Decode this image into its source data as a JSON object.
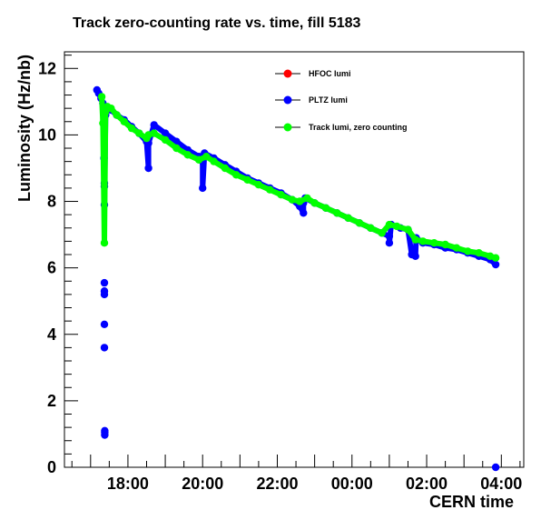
{
  "chart_data": {
    "type": "scatter",
    "title": "Track zero-counting rate vs. time, fill 5183",
    "xlabel": "CERN time",
    "ylabel": "Luminosity (Hz/nb)",
    "x_unit": "hours (CERN time, 24 = 00:00 next day)",
    "xlim": [
      16.3,
      28.6
    ],
    "ylim": [
      0,
      12.5
    ],
    "x_ticks": [
      {
        "value": 18,
        "label": "18:00"
      },
      {
        "value": 20,
        "label": "20:00"
      },
      {
        "value": 22,
        "label": "22:00"
      },
      {
        "value": 24,
        "label": "00:00"
      },
      {
        "value": 26,
        "label": "02:00"
      },
      {
        "value": 28,
        "label": "04:00"
      }
    ],
    "y_ticks": [
      {
        "value": 0,
        "label": "0"
      },
      {
        "value": 2,
        "label": "2"
      },
      {
        "value": 4,
        "label": "4"
      },
      {
        "value": 6,
        "label": "6"
      },
      {
        "value": 8,
        "label": "8"
      },
      {
        "value": 10,
        "label": "10"
      },
      {
        "value": 12,
        "label": "12"
      }
    ],
    "grid": false,
    "legend_position": "top-right",
    "series": [
      {
        "name": "HFOC lumi",
        "color": "#ff0000",
        "x": [],
        "y": []
      },
      {
        "name": "PLTZ lumi",
        "color": "#0000ff",
        "x": [
          17.17,
          17.22,
          17.28,
          17.33,
          17.36,
          17.36,
          17.36,
          17.37,
          17.37,
          17.37,
          17.37,
          17.37,
          17.37,
          17.37,
          17.37,
          17.38,
          17.38,
          17.38,
          17.4,
          17.45,
          17.55,
          17.7,
          17.9,
          18.1,
          18.3,
          18.5,
          18.55,
          18.55,
          18.7,
          19.0,
          19.3,
          19.6,
          19.9,
          20.0,
          20.0,
          20.05,
          20.3,
          20.6,
          20.9,
          21.2,
          21.5,
          21.8,
          22.1,
          22.4,
          22.6,
          22.7,
          22.7,
          22.75,
          23.0,
          23.3,
          23.6,
          23.9,
          24.2,
          24.5,
          24.8,
          25.0,
          25.0,
          25.05,
          25.3,
          25.5,
          25.6,
          25.7,
          25.72,
          25.9,
          26.2,
          26.5,
          26.8,
          27.1,
          27.4,
          27.7,
          27.85,
          27.85
        ],
        "y": [
          11.35,
          11.25,
          11.1,
          10.95,
          10.7,
          10.35,
          9.3,
          8.55,
          8.45,
          7.9,
          5.55,
          5.3,
          5.2,
          4.3,
          3.6,
          1.1,
          1.05,
          0.97,
          10.6,
          10.8,
          10.75,
          10.6,
          10.45,
          10.25,
          10.05,
          9.8,
          9.0,
          9.75,
          10.3,
          10.05,
          9.8,
          9.55,
          9.35,
          9.2,
          8.4,
          9.45,
          9.3,
          9.1,
          8.9,
          8.7,
          8.55,
          8.4,
          8.25,
          8.05,
          7.85,
          7.65,
          7.95,
          8.1,
          7.95,
          7.8,
          7.65,
          7.5,
          7.35,
          7.2,
          7.05,
          6.95,
          6.75,
          7.3,
          7.2,
          7.15,
          6.4,
          6.35,
          6.9,
          6.75,
          6.7,
          6.6,
          6.55,
          6.45,
          6.35,
          6.25,
          6.1,
          0.0
        ]
      },
      {
        "name": "Track lumi, zero counting",
        "color": "#00ff00",
        "x": [
          17.3,
          17.33,
          17.37,
          17.4,
          17.45,
          17.55,
          17.7,
          17.9,
          18.1,
          18.3,
          18.5,
          18.55,
          18.7,
          19.0,
          19.3,
          19.6,
          19.9,
          20.1,
          20.3,
          20.6,
          20.9,
          21.2,
          21.5,
          21.8,
          22.1,
          22.4,
          22.6,
          22.8,
          23.0,
          23.3,
          23.6,
          23.9,
          24.2,
          24.5,
          24.8,
          25.0,
          25.2,
          25.5,
          25.7,
          25.9,
          26.2,
          26.5,
          26.8,
          27.1,
          27.4,
          27.7,
          27.85
        ],
        "y": [
          11.15,
          10.35,
          6.75,
          10.7,
          10.85,
          10.8,
          10.6,
          10.4,
          10.2,
          10.05,
          9.9,
          10.0,
          10.05,
          9.85,
          9.6,
          9.4,
          9.25,
          9.35,
          9.2,
          9.0,
          8.8,
          8.65,
          8.5,
          8.35,
          8.2,
          8.05,
          8.0,
          8.1,
          7.95,
          7.8,
          7.65,
          7.5,
          7.35,
          7.2,
          7.05,
          7.3,
          7.25,
          7.15,
          6.85,
          6.8,
          6.75,
          6.7,
          6.6,
          6.5,
          6.45,
          6.35,
          6.3
        ]
      }
    ]
  }
}
